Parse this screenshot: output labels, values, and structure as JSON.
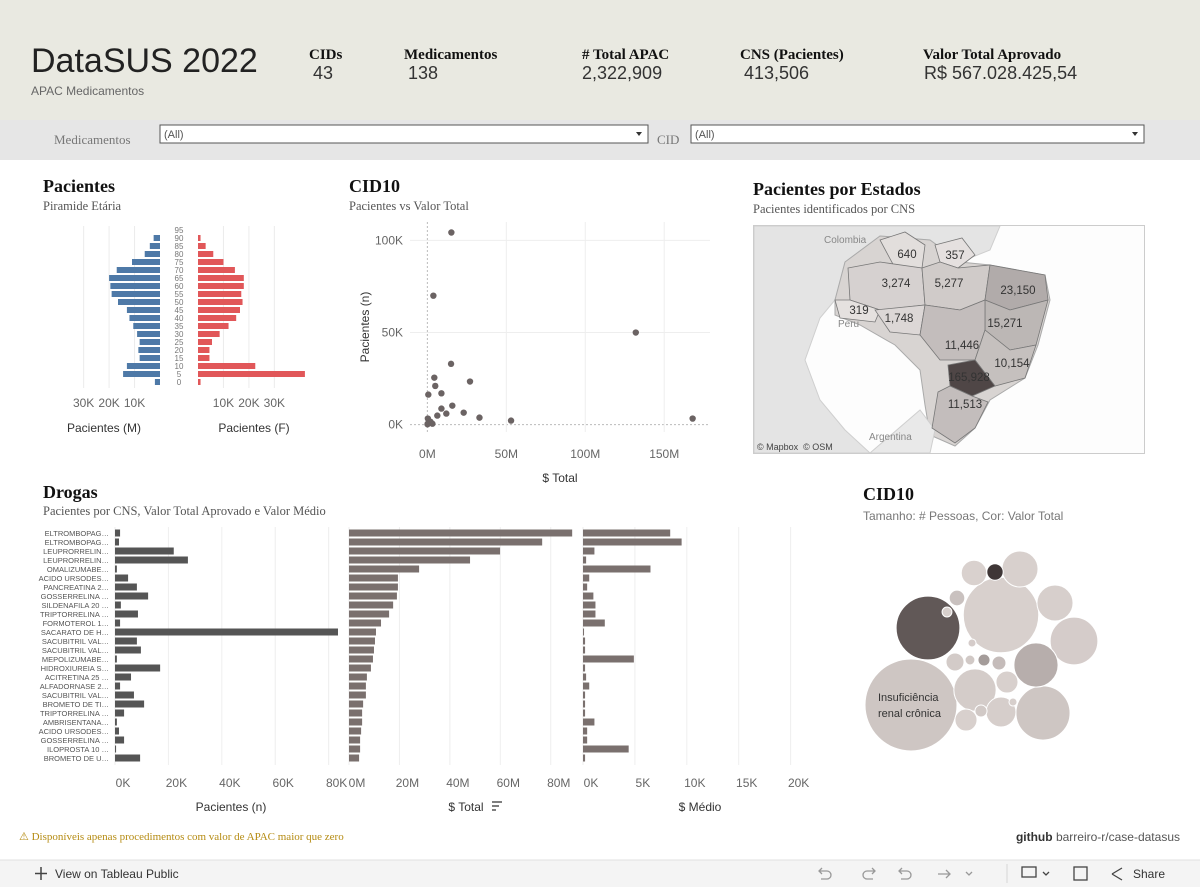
{
  "header": {
    "title": "DataSUS 2022",
    "subtitle": "APAC Medicamentos",
    "kpis": [
      {
        "label": "CIDs",
        "value": "43"
      },
      {
        "label": "Medicamentos",
        "value": "138"
      },
      {
        "label": "# Total APAC",
        "value": "2,322,909"
      },
      {
        "label": "CNS (Pacientes)",
        "value": "413,506"
      },
      {
        "label": "Valor Total Aprovado",
        "value": "R$ 567.028.425,54"
      }
    ]
  },
  "filters": [
    {
      "label": "Medicamentos",
      "value": "(All)"
    },
    {
      "label": "CID",
      "value": "(All)"
    }
  ],
  "chart_data": [
    {
      "type": "pyramid",
      "title": "Pacientes",
      "subtitle": "Piramide Etária",
      "categories": [
        "0",
        "5",
        "10",
        "15",
        "20",
        "25",
        "30",
        "35",
        "40",
        "45",
        "50",
        "55",
        "60",
        "65",
        "70",
        "75",
        "80",
        "85",
        "90",
        "95"
      ],
      "series": [
        {
          "name": "Pacientes (M)",
          "color": "#4e79a7",
          "values": [
            2000,
            14500,
            13000,
            8000,
            8500,
            8000,
            9000,
            10500,
            12000,
            13000,
            16500,
            19000,
            19500,
            20000,
            17000,
            11000,
            6000,
            4000,
            2500,
            0
          ]
        },
        {
          "name": "Pacientes (F)",
          "color": "#e15759",
          "values": [
            1000,
            42000,
            22500,
            4500,
            4500,
            5500,
            8500,
            12000,
            15000,
            16500,
            17500,
            17000,
            18000,
            18000,
            14500,
            10000,
            6000,
            3000,
            1000,
            0
          ]
        }
      ],
      "xlim": [
        0,
        44000
      ],
      "xticks": [
        {
          "value": 10000,
          "label": "10K"
        },
        {
          "value": 20000,
          "label": "20K"
        },
        {
          "value": 30000,
          "label": "30K"
        }
      ],
      "grid": true
    },
    {
      "type": "scatter",
      "title": "CID10",
      "subtitle": "Pacientes vs Valor Total",
      "xlabel": "$ Total",
      "ylabel": "Pacientes (n)",
      "color": "#6b6363",
      "x": [
        15200000,
        3800000,
        132000000,
        168000000,
        53000000,
        27000000,
        15000000,
        4400000,
        5000000,
        8900000,
        600000,
        23000000,
        15800000,
        8900000,
        12000000,
        6300000,
        33000000,
        300000,
        1900000,
        3200000,
        200000,
        100000
      ],
      "values": [
        104300,
        70000,
        50000,
        3300,
        2200,
        23400,
        33000,
        25500,
        21000,
        17000,
        16300,
        6500,
        10300,
        8700,
        6000,
        4900,
        3800,
        3300,
        1600,
        500,
        500,
        200
      ],
      "xlim": [
        -11000000,
        179000000
      ],
      "ylim": [
        -4000,
        110000
      ],
      "xticks": [
        {
          "value": 0,
          "label": "0M"
        },
        {
          "value": 50000000,
          "label": "50M"
        },
        {
          "value": 100000000,
          "label": "100M"
        },
        {
          "value": 150000000,
          "label": "150M"
        }
      ],
      "yticks": [
        {
          "value": 0,
          "label": "0K"
        },
        {
          "value": 50000,
          "label": "50K"
        },
        {
          "value": 100000,
          "label": "100K"
        }
      ],
      "grid": true
    },
    {
      "type": "map",
      "title": "Pacientes por Estados",
      "subtitle": "Pacientes identificados por CNS",
      "values": [
        640,
        357,
        3274,
        5277,
        23150,
        319,
        1748,
        15271,
        11446,
        10154,
        165928,
        11513
      ],
      "value_labels": [
        "640",
        "357",
        "3,274",
        "5,277",
        "23,150",
        "319",
        "1,748",
        "15,271",
        "11,446",
        "10,154",
        "165,928",
        "11,513"
      ],
      "color_range": [
        "#ece8e6",
        "#4f4646"
      ],
      "places": [
        "Colombia",
        "Peru",
        "Argentina"
      ],
      "credits": "© Mapbox  © OSM"
    },
    {
      "type": "hbar",
      "title": "Drogas",
      "subtitle": "Pacientes por CNS, Valor Total Aprovado e Valor Médio",
      "categories": [
        "ELTROMBOPAG…",
        "ELTROMBOPAG…",
        "LEUPRORRELIN…",
        "LEUPRORRELIN…",
        "OMALIZUMABE…",
        "ACIDO URSODES…",
        "PANCREATINA 2…",
        "GOSSERRELINA …",
        "SILDENAFILA 20 …",
        "TRIPTORRELINA …",
        "FORMOTEROL 1…",
        "SACARATO DE H…",
        "SACUBITRIL VAL…",
        "SACUBITRIL VAL…",
        "MEPOLIZUMABE…",
        "HIDROXIUREIA S…",
        "ACITRETINA 25 …",
        "ALFADORNASE 2…",
        "SACUBITRIL VAL…",
        "BROMETO DE TI…",
        "TRIPTORRELINA …",
        "AMBRISENTANA…",
        "ACIDO URSODES…",
        "GOSSERRELINA …",
        "ILOPROSTA 10 …",
        "BROMETO DE U…"
      ],
      "panels": [
        {
          "xlabel": "Pacientes (n)",
          "color": "#555555",
          "values": [
            1900,
            1500,
            22000,
            27300,
            700,
            4900,
            8200,
            12400,
            2200,
            8600,
            1900,
            83500,
            8200,
            9700,
            700,
            16900,
            6000,
            1900,
            7100,
            10900,
            3400,
            700,
            1500,
            3400,
            400,
            9400
          ],
          "xlim": [
            0,
            85000
          ],
          "xticks": [
            {
              "value": 0,
              "label": "0K"
            },
            {
              "value": 20000,
              "label": "20K"
            },
            {
              "value": 40000,
              "label": "40K"
            },
            {
              "value": 60000,
              "label": "60K"
            },
            {
              "value": 80000,
              "label": "80K"
            }
          ]
        },
        {
          "xlabel": "$ Total",
          "color": "#7a706e",
          "values": [
            88500000,
            76600000,
            59900000,
            48000000,
            27800000,
            19400000,
            19400000,
            19000000,
            17500000,
            15900000,
            12700000,
            10700000,
            10300000,
            9900000,
            9500000,
            8700000,
            7100000,
            6700000,
            6700000,
            5600000,
            5200000,
            5200000,
            4800000,
            4400000,
            4400000,
            4000000
          ],
          "xlim": [
            0,
            92000000
          ],
          "xticks": [
            {
              "value": 0,
              "label": "0M"
            },
            {
              "value": 20000000,
              "label": "20M"
            },
            {
              "value": 40000000,
              "label": "40M"
            },
            {
              "value": 60000000,
              "label": "60M"
            },
            {
              "value": 80000000,
              "label": "80M"
            }
          ]
        },
        {
          "xlabel": "$ Médio",
          "color": "#7a706e",
          "values": [
            8400,
            9500,
            1100,
            300,
            6500,
            600,
            400,
            1000,
            1200,
            1200,
            2100,
            100,
            200,
            200,
            4900,
            200,
            300,
            600,
            200,
            200,
            200,
            1100,
            400,
            400,
            4400,
            200
          ],
          "xlim": [
            0,
            21000
          ],
          "xticks": [
            {
              "value": 0,
              "label": "0K"
            },
            {
              "value": 5000,
              "label": "5K"
            },
            {
              "value": 10000,
              "label": "10K"
            },
            {
              "value": 15000,
              "label": "15K"
            },
            {
              "value": 20000,
              "label": "20K"
            }
          ]
        }
      ],
      "grid": true
    },
    {
      "type": "bubble",
      "title": "CID10",
      "subtitle": "Tamanho: # Pessoas, Cor: Valor Total",
      "values": [
        104000,
        70000,
        50000,
        36000,
        28000,
        24000,
        16000,
        16000,
        22000,
        11000,
        8000,
        3300,
        6000,
        6000,
        3000,
        4000,
        1800,
        2400,
        1200,
        1800,
        1200,
        800,
        800
      ],
      "color_values": [
        15200000,
        3800000,
        132000000,
        15000000,
        8000000,
        40000000,
        4000000,
        5000000,
        9000000,
        6000000,
        3000000,
        168000000,
        4000000,
        4000000,
        20000000,
        10000000,
        60000000,
        25000000,
        12000000,
        12000000,
        5000000,
        8000000,
        5000000
      ],
      "color_range": [
        "#dcd4d1",
        "#3f3636"
      ],
      "annotation": "Insuficiência renal crônica"
    }
  ],
  "footer": {
    "note": "⚠ Disponíveis apenas procedimentos com valor de APAC maior que zero",
    "site": "github",
    "repo": "barreiro-r/case-datasus"
  },
  "toolbar": {
    "view": "View on Tableau Public",
    "share": "Share"
  }
}
